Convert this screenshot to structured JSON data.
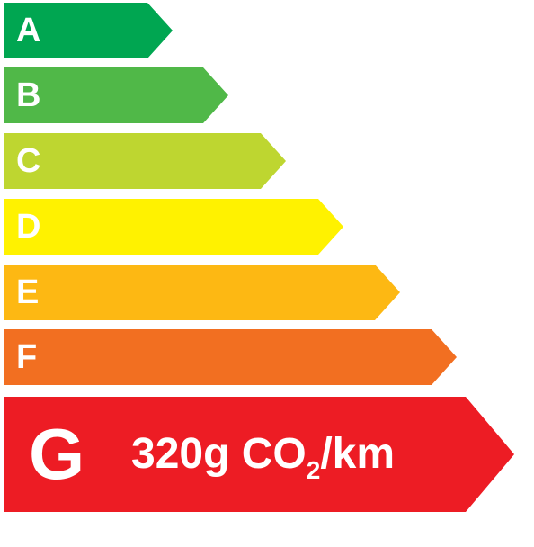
{
  "classes": [
    {
      "letter": "A",
      "color": "#00a651"
    },
    {
      "letter": "B",
      "color": "#50b848"
    },
    {
      "letter": "C",
      "color": "#bed630"
    },
    {
      "letter": "D",
      "color": "#fff200"
    },
    {
      "letter": "E",
      "color": "#fdb813"
    },
    {
      "letter": "F",
      "color": "#f26f21"
    }
  ],
  "rating": {
    "letter": "G",
    "color": "#ed1c24",
    "value": "320g CO",
    "subscript": "2",
    "unit": "/km"
  }
}
